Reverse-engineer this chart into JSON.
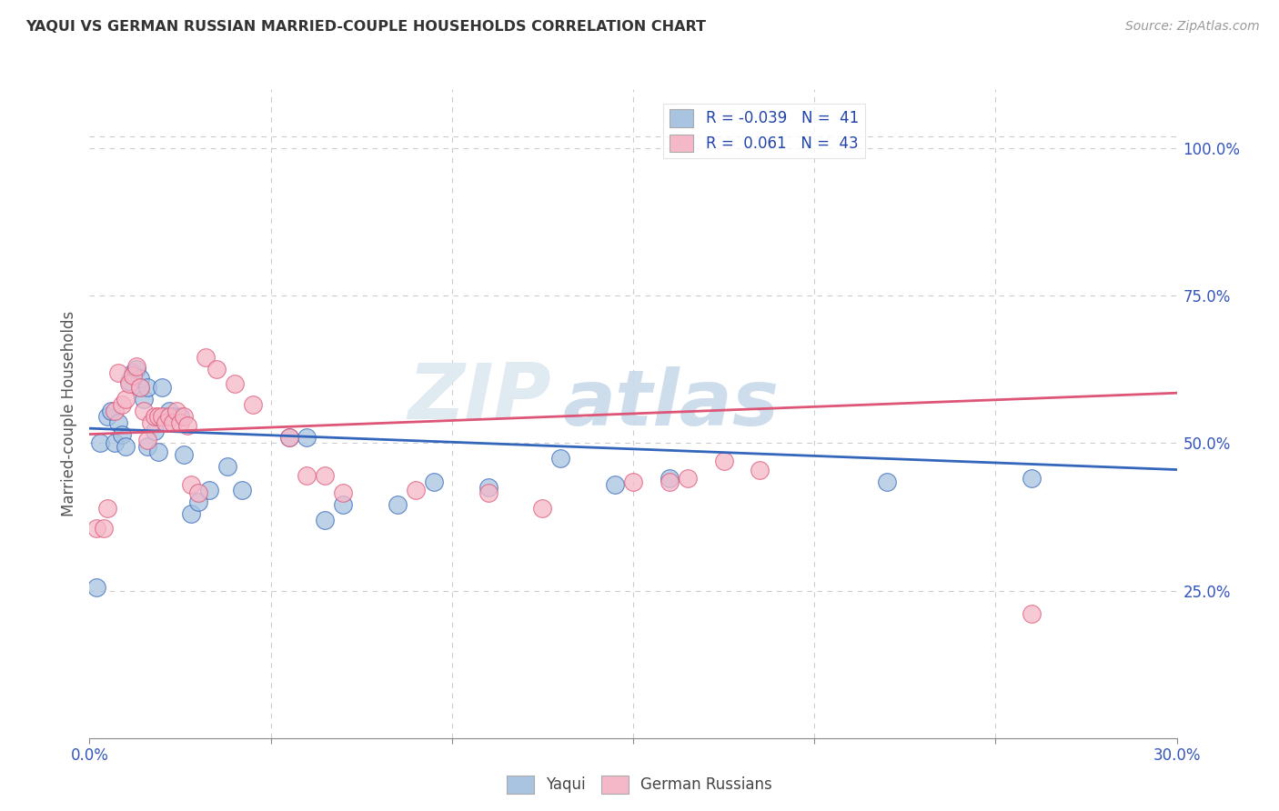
{
  "title": "YAQUI VS GERMAN RUSSIAN MARRIED-COUPLE HOUSEHOLDS CORRELATION CHART",
  "source": "Source: ZipAtlas.com",
  "ylabel": "Married-couple Households",
  "ytick_labels": [
    "25.0%",
    "50.0%",
    "75.0%",
    "100.0%"
  ],
  "ytick_values": [
    0.25,
    0.5,
    0.75,
    1.0
  ],
  "xlim": [
    0.0,
    0.3
  ],
  "ylim": [
    0.0,
    1.1
  ],
  "legend_blue_label": "R = -0.039   N =  41",
  "legend_pink_label": "R =  0.061   N =  43",
  "blue_color": "#a8c4e0",
  "pink_color": "#f5b8c8",
  "blue_line_color": "#3366bb",
  "pink_line_color": "#dd5577",
  "watermark_zip": "ZIP",
  "watermark_atlas": "atlas",
  "yaqui_x": [
    0.002,
    0.003,
    0.005,
    0.006,
    0.007,
    0.008,
    0.009,
    0.01,
    0.011,
    0.012,
    0.013,
    0.014,
    0.014,
    0.015,
    0.016,
    0.016,
    0.018,
    0.019,
    0.02,
    0.021,
    0.022,
    0.023,
    0.025,
    0.026,
    0.028,
    0.03,
    0.033,
    0.038,
    0.042,
    0.055,
    0.06,
    0.065,
    0.07,
    0.085,
    0.095,
    0.11,
    0.13,
    0.145,
    0.16,
    0.22,
    0.26
  ],
  "yaqui_y": [
    0.255,
    0.5,
    0.545,
    0.555,
    0.5,
    0.535,
    0.515,
    0.495,
    0.605,
    0.62,
    0.625,
    0.595,
    0.61,
    0.575,
    0.595,
    0.495,
    0.52,
    0.485,
    0.595,
    0.545,
    0.555,
    0.545,
    0.545,
    0.48,
    0.38,
    0.4,
    0.42,
    0.46,
    0.42,
    0.51,
    0.51,
    0.37,
    0.395,
    0.395,
    0.435,
    0.425,
    0.475,
    0.43,
    0.44,
    0.435,
    0.44
  ],
  "german_x": [
    0.002,
    0.004,
    0.005,
    0.007,
    0.008,
    0.009,
    0.01,
    0.011,
    0.012,
    0.013,
    0.014,
    0.015,
    0.016,
    0.017,
    0.018,
    0.019,
    0.02,
    0.021,
    0.022,
    0.023,
    0.024,
    0.025,
    0.026,
    0.027,
    0.028,
    0.03,
    0.032,
    0.035,
    0.04,
    0.045,
    0.055,
    0.06,
    0.065,
    0.07,
    0.09,
    0.11,
    0.125,
    0.15,
    0.16,
    0.165,
    0.175,
    0.185,
    0.26
  ],
  "german_y": [
    0.355,
    0.355,
    0.39,
    0.555,
    0.62,
    0.565,
    0.575,
    0.6,
    0.615,
    0.63,
    0.595,
    0.555,
    0.505,
    0.535,
    0.545,
    0.545,
    0.545,
    0.535,
    0.545,
    0.535,
    0.555,
    0.535,
    0.545,
    0.53,
    0.43,
    0.415,
    0.645,
    0.625,
    0.6,
    0.565,
    0.51,
    0.445,
    0.445,
    0.415,
    0.42,
    0.415,
    0.39,
    0.435,
    0.435,
    0.44,
    0.47,
    0.455,
    0.21
  ]
}
